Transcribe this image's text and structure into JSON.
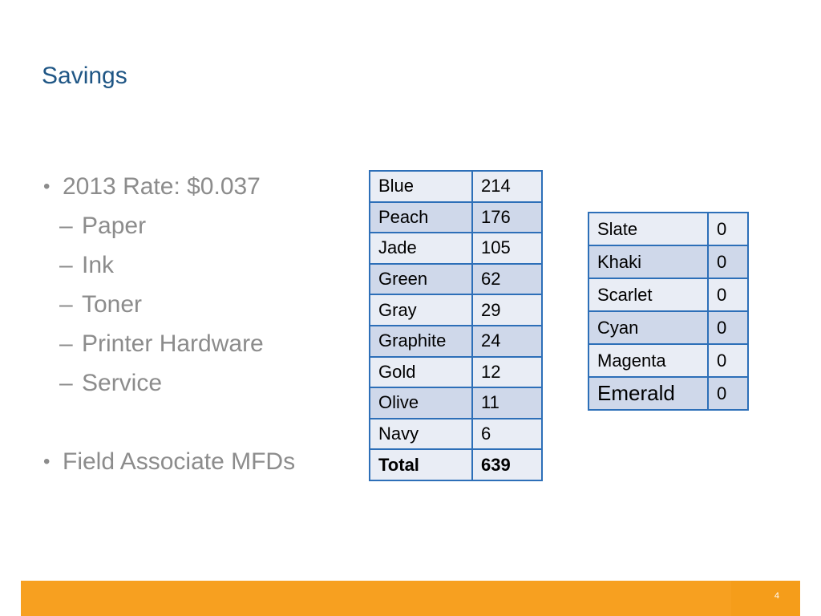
{
  "slide": {
    "title": "Savings",
    "page_number": "4"
  },
  "bullets": {
    "rate": "2013 Rate: $0.037",
    "sub_items": [
      "Paper",
      "Ink",
      "Toner",
      "Printer Hardware",
      "Service"
    ],
    "mfds": "Field Associate MFDs",
    "bullet_glyph": "•",
    "dash_glyph": "–"
  },
  "main_table": {
    "rows": [
      {
        "name": "Blue",
        "value": "214"
      },
      {
        "name": "Peach",
        "value": "176"
      },
      {
        "name": "Jade",
        "value": "105"
      },
      {
        "name": "Green",
        "value": "62"
      },
      {
        "name": "Gray",
        "value": "29"
      },
      {
        "name": "Graphite",
        "value": "24"
      },
      {
        "name": "Gold",
        "value": "12"
      },
      {
        "name": "Olive",
        "value": "11"
      },
      {
        "name": "Navy",
        "value": "6"
      }
    ],
    "total_label": "Total",
    "total_value": "639"
  },
  "side_table": {
    "rows": [
      {
        "name": "Slate",
        "value": "0"
      },
      {
        "name": "Khaki",
        "value": "0"
      },
      {
        "name": "Scarlet",
        "value": "0"
      },
      {
        "name": "Cyan",
        "value": "0"
      },
      {
        "name": "Magenta",
        "value": "0"
      },
      {
        "name": "Emerald",
        "value": "0"
      }
    ]
  },
  "colors": {
    "title": "#1f5685",
    "bullet_text": "#8c8c8c",
    "table_border": "#2d6fb8",
    "row_light": "#e9edf5",
    "row_dark": "#cfd8ea",
    "footer": "#f7a020"
  }
}
